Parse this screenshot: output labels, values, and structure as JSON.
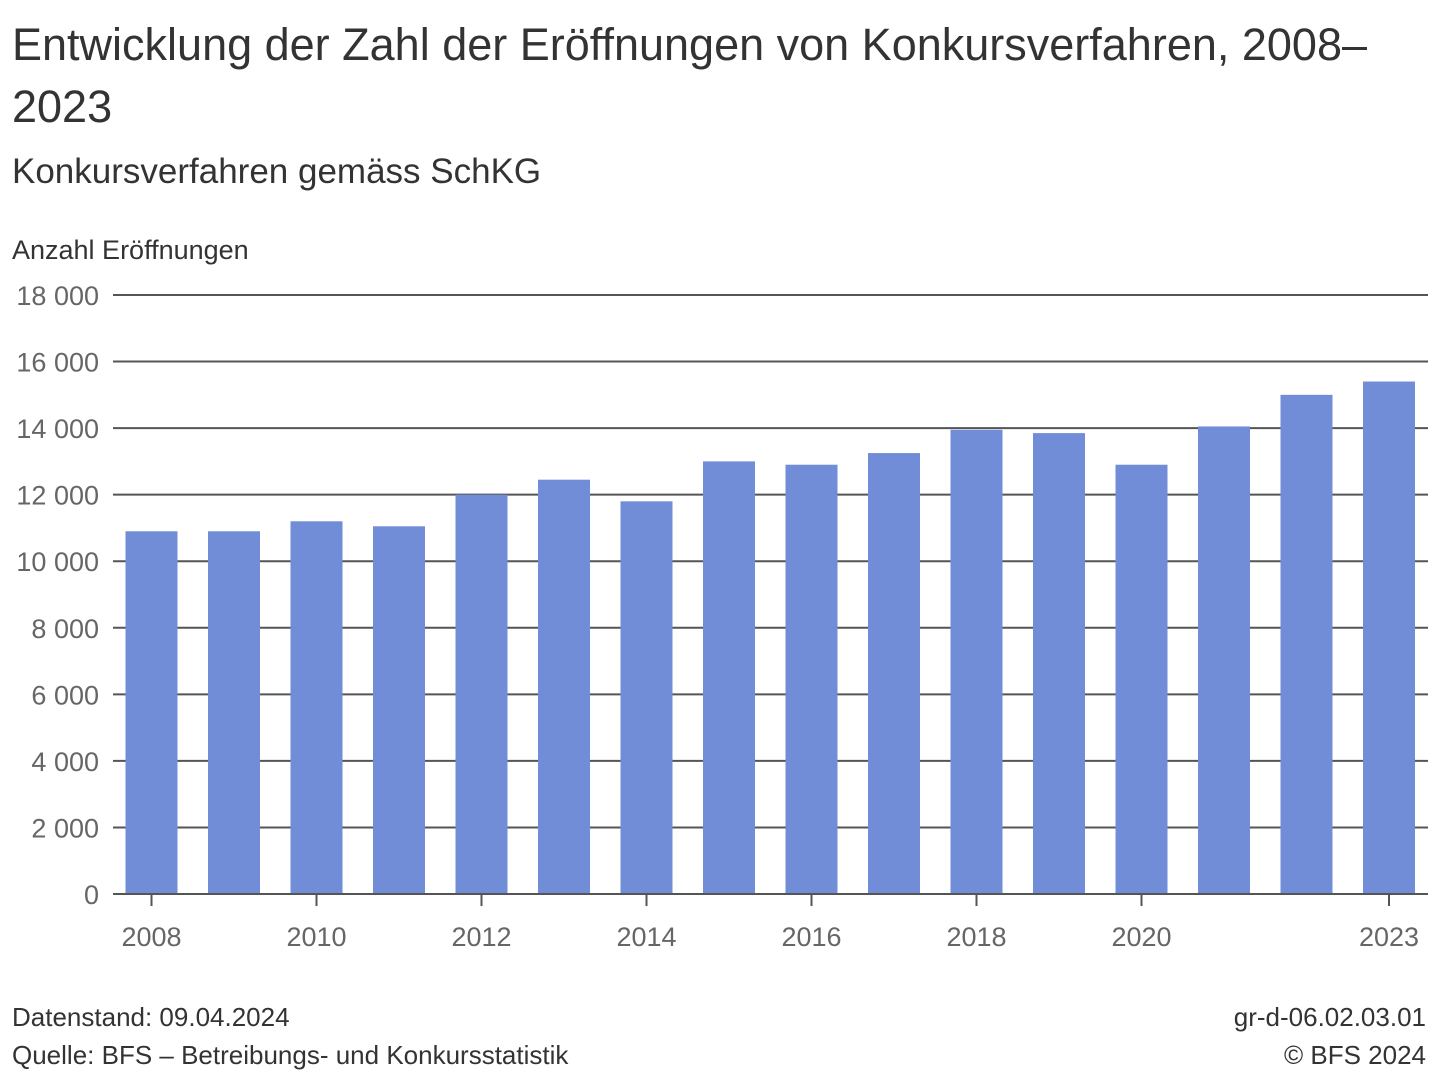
{
  "title": "Entwicklung der Zahl der Eröffnungen von Konkursverfahren, 2008–2023",
  "subtitle": "Konkursverfahren gemäss SchKG",
  "footer": {
    "date": "Datenstand: 09.04.2024",
    "source": "Quelle: BFS – Betreibungs- und Konkursstatistik",
    "code": "gr-d-06.02.03.01",
    "copyright": "© BFS 2024"
  },
  "colors": {
    "bar": "#728dd8",
    "grid": "#555555",
    "text": "#333333",
    "tick": "#666666"
  },
  "chart_data": {
    "type": "bar",
    "title": "Entwicklung der Zahl der Eröffnungen von Konkursverfahren, 2008–2023",
    "subtitle": "Konkursverfahren gemäss SchKG",
    "ylabel": "Anzahl Eröffnungen",
    "xlabel": "",
    "ylim": [
      0,
      18000
    ],
    "yticks": [
      0,
      2000,
      4000,
      6000,
      8000,
      10000,
      12000,
      14000,
      16000,
      18000
    ],
    "ytick_labels": [
      "0",
      "2 000",
      "4 000",
      "6 000",
      "8 000",
      "10 000",
      "12 000",
      "14 000",
      "16 000",
      "18 000"
    ],
    "categories": [
      "2008",
      "2009",
      "2010",
      "2011",
      "2012",
      "2013",
      "2014",
      "2015",
      "2016",
      "2017",
      "2018",
      "2019",
      "2020",
      "2021",
      "2022",
      "2023"
    ],
    "xtick_labels": [
      "2008",
      "",
      "2010",
      "",
      "2012",
      "",
      "2014",
      "",
      "2016",
      "",
      "2018",
      "",
      "2020",
      "",
      "",
      "2023"
    ],
    "values": [
      10900,
      10900,
      11200,
      11050,
      12000,
      12450,
      11800,
      13000,
      12900,
      13250,
      13950,
      13850,
      12900,
      14050,
      15000,
      15400
    ],
    "grid": true,
    "legend": "none"
  }
}
